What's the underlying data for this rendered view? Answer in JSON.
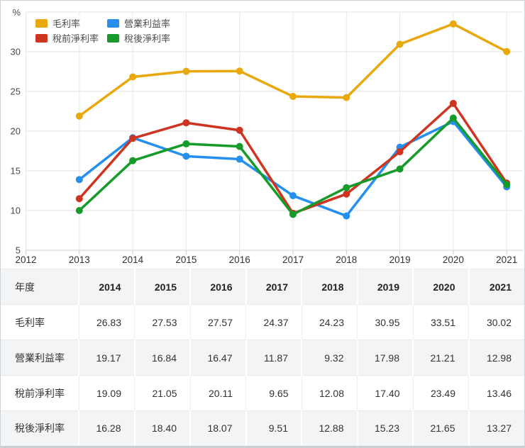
{
  "chart_data": {
    "type": "line",
    "title": "",
    "xlabel": "",
    "ylabel": "%",
    "ylim": [
      5,
      35
    ],
    "y_ticks": [
      5,
      10,
      15,
      20,
      25,
      30
    ],
    "x_axis_ticks": [
      2012,
      2013,
      2014,
      2015,
      2016,
      2017,
      2018,
      2019,
      2020,
      2021
    ],
    "x": [
      2013,
      2014,
      2015,
      2016,
      2017,
      2018,
      2019,
      2020,
      2021
    ],
    "grid": true,
    "marker": "circle",
    "legend_position": "top-left",
    "series": [
      {
        "name": "毛利率",
        "color": "#E9A90D",
        "values": [
          21.9,
          26.83,
          27.53,
          27.57,
          24.37,
          24.23,
          30.95,
          33.51,
          30.02
        ]
      },
      {
        "name": "營業利益率",
        "color": "#258FEF",
        "values": [
          13.9,
          19.17,
          16.84,
          16.47,
          11.87,
          9.32,
          17.98,
          21.21,
          12.98
        ]
      },
      {
        "name": "稅前淨利率",
        "color": "#CE3420",
        "values": [
          11.5,
          19.09,
          21.05,
          20.11,
          9.65,
          12.08,
          17.4,
          23.49,
          13.46
        ]
      },
      {
        "name": "稅後淨利率",
        "color": "#169B2B",
        "values": [
          10.0,
          16.28,
          18.4,
          18.07,
          9.51,
          12.88,
          15.23,
          21.65,
          13.27
        ]
      }
    ]
  },
  "table": {
    "corner_label": "年度",
    "columns": [
      "2014",
      "2015",
      "2016",
      "2017",
      "2018",
      "2019",
      "2020",
      "2021"
    ],
    "rows": [
      {
        "label": "毛利率",
        "values": [
          "26.83",
          "27.53",
          "27.57",
          "24.37",
          "24.23",
          "30.95",
          "33.51",
          "30.02"
        ]
      },
      {
        "label": "營業利益率",
        "values": [
          "19.17",
          "16.84",
          "16.47",
          "11.87",
          "9.32",
          "17.98",
          "21.21",
          "12.98"
        ]
      },
      {
        "label": "稅前淨利率",
        "values": [
          "19.09",
          "21.05",
          "20.11",
          "9.65",
          "12.08",
          "17.40",
          "23.49",
          "13.46"
        ]
      },
      {
        "label": "稅後淨利率",
        "values": [
          "16.28",
          "18.40",
          "18.07",
          "9.51",
          "12.88",
          "15.23",
          "21.65",
          "13.27"
        ]
      }
    ]
  },
  "colors": {
    "grid_line": "#e3e3e3",
    "axis_line": "#cfcfcf",
    "axis_text": "#4a4a4a",
    "zebra_row": "#f3f4f6"
  }
}
